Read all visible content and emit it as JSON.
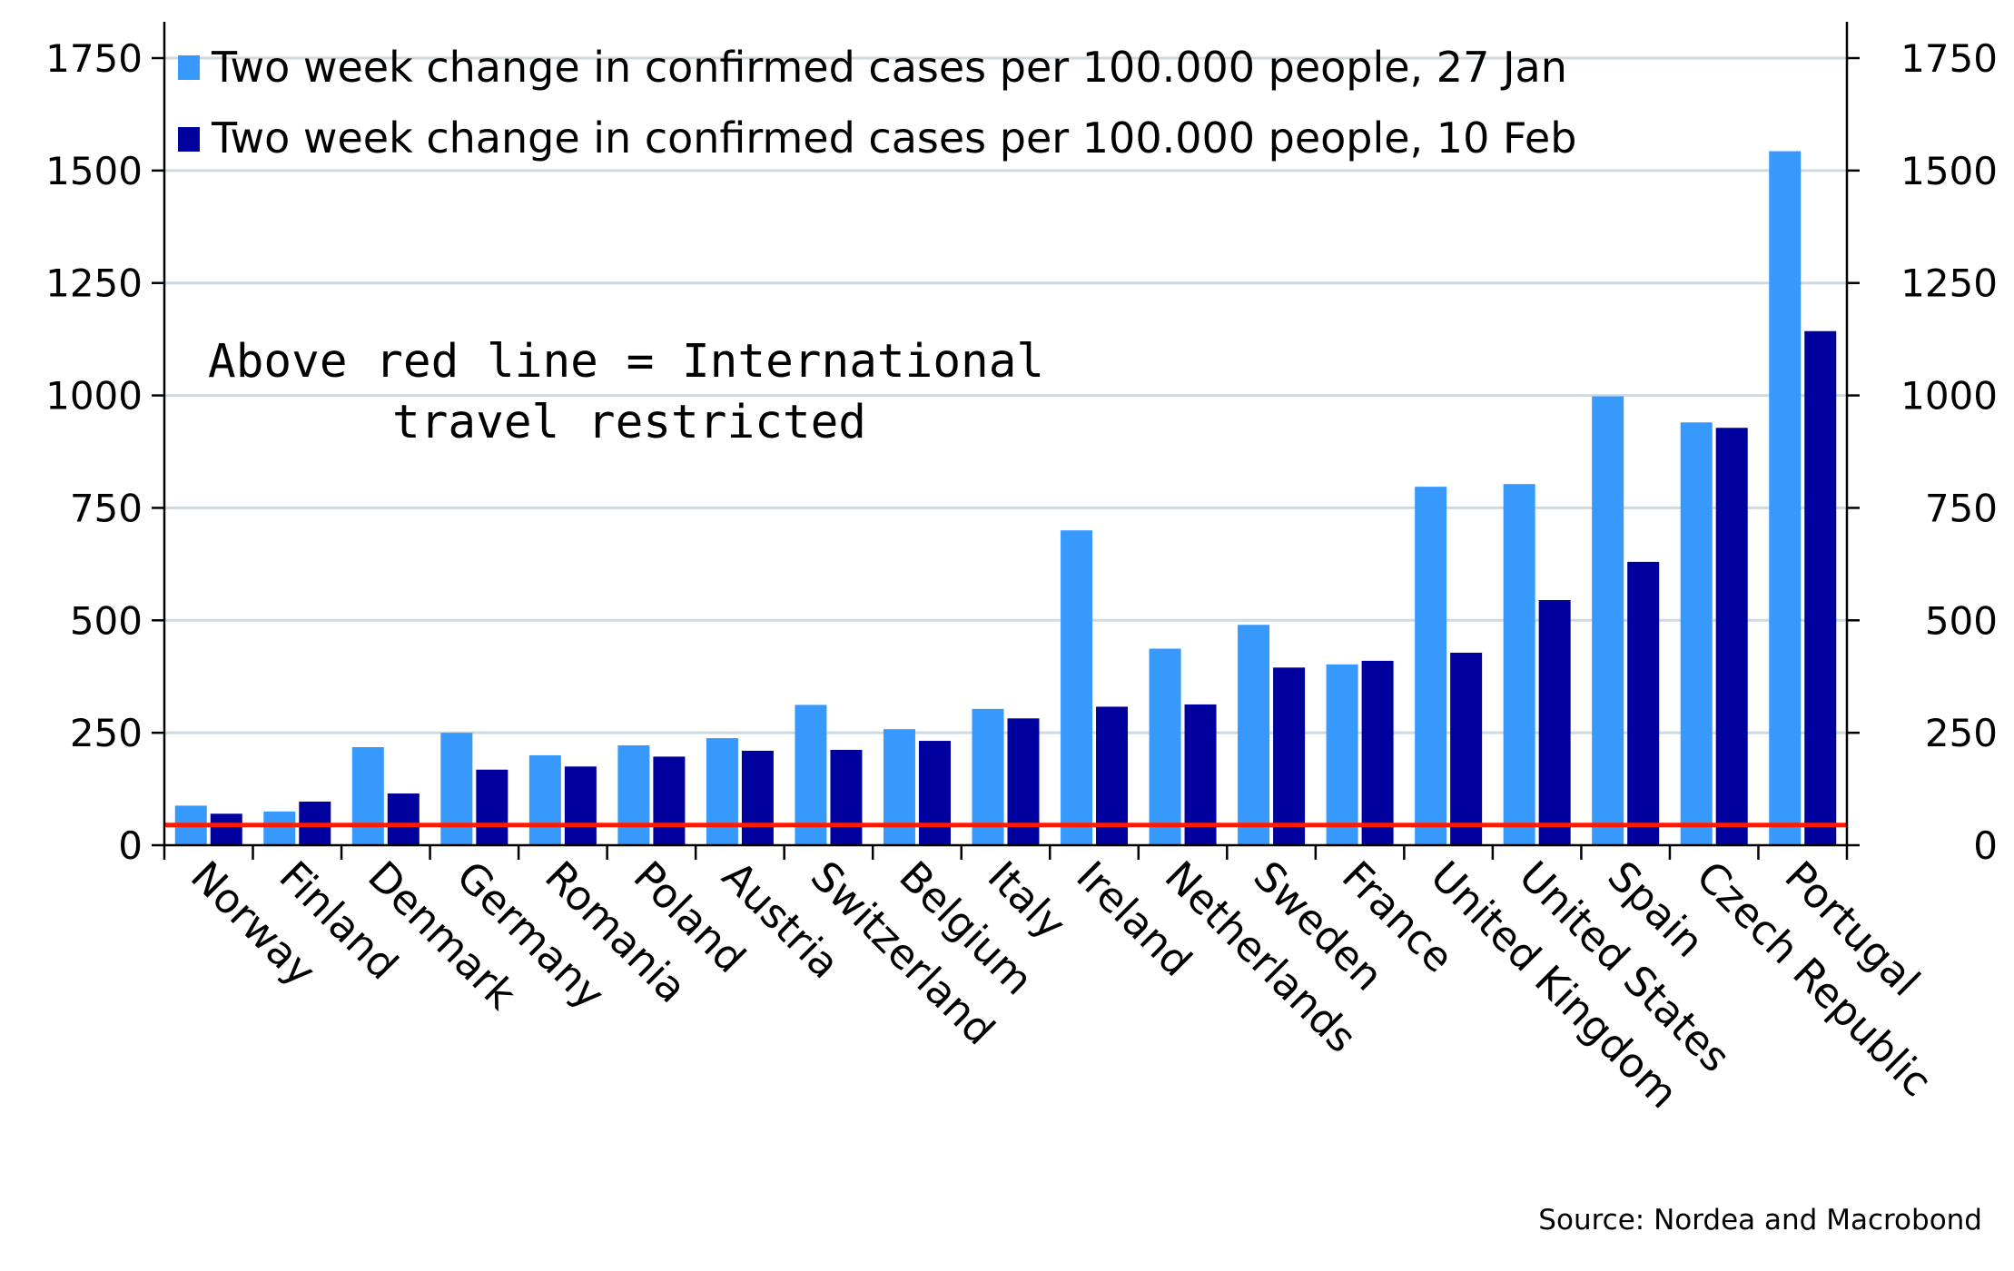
{
  "chart_data": {
    "type": "bar",
    "title": "",
    "xlabel": "",
    "ylabel": "",
    "ylim": [
      0,
      1820
    ],
    "yticks": [
      0,
      250,
      500,
      750,
      1000,
      1250,
      1500,
      1750
    ],
    "grid": true,
    "legend_position": "top-left",
    "categories": [
      "Norway",
      "Finland",
      "Denmark",
      "Germany",
      "Romania",
      "Poland",
      "Austria",
      "Switzerland",
      "Belgium",
      "Italy",
      "Ireland",
      "Netherlands",
      "Sweden",
      "France",
      "United Kingdom",
      "United States",
      "Spain",
      "Czech Republic",
      "Portugal"
    ],
    "series": [
      {
        "name": "Two week change in confirmed cases per 100.000 people, 27 Jan",
        "color": "#3799fb",
        "values": [
          88,
          75,
          218,
          250,
          200,
          222,
          238,
          312,
          258,
          303,
          700,
          437,
          490,
          402,
          797,
          803,
          998,
          940,
          1543
        ]
      },
      {
        "name": "Two week change in confirmed cases per 100.000 people, 10 Feb",
        "color": "#00009e",
        "values": [
          70,
          97,
          115,
          168,
          175,
          197,
          210,
          212,
          232,
          282,
          308,
          313,
          395,
          410,
          428,
          545,
          630,
          928,
          1143
        ]
      }
    ],
    "threshold": {
      "value": 45,
      "color": "#ff1a00"
    },
    "annotation": [
      "Above red line = International",
      "travel restricted"
    ],
    "source": "Source: Nordea and Macrobond"
  }
}
